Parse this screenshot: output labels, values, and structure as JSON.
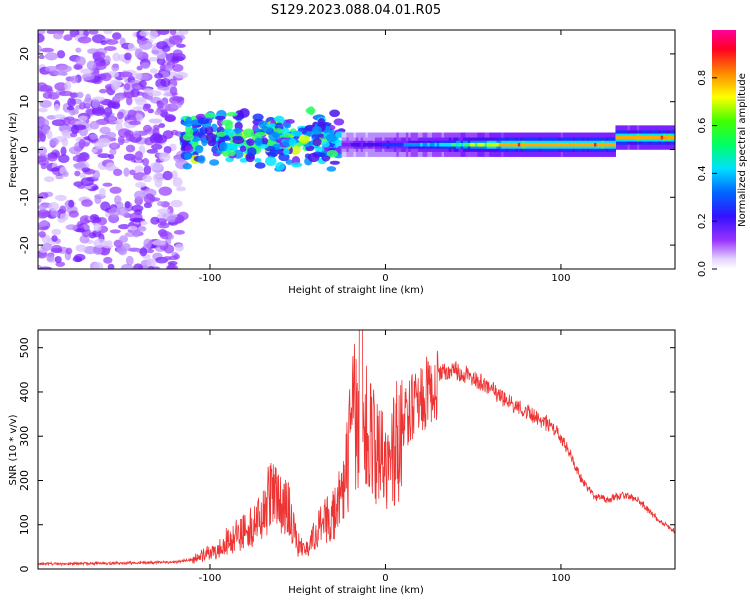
{
  "title": "S129.2023.088.04.01.R05",
  "colors": {
    "snr_line": "#ee3333",
    "axes": "#000000",
    "background": "#ffffff"
  },
  "chart_data": [
    {
      "type": "heatmap",
      "title": "",
      "xlabel": "Height of straight line (km)",
      "ylabel": "Frequency (Hz)",
      "xlim": [
        -198,
        165
      ],
      "ylim": [
        -25,
        25
      ],
      "xticks": [
        -100,
        0,
        100
      ],
      "yticks": [
        -20,
        -10,
        0,
        10,
        20
      ],
      "grid": false,
      "colorbar": {
        "label": "Normalized spectral amplitude",
        "range": [
          0.0,
          1.0
        ],
        "ticks": [
          0.0,
          0.2,
          0.4,
          0.6,
          0.8
        ],
        "colormap": "rainbow (magenta-blue-cyan-green-yellow-red)"
      },
      "ridge_regions": [
        {
          "x_range": [
            -198,
            -115
          ],
          "freq_center": 0,
          "freq_spread": 25,
          "amplitude": 0.15,
          "description": "noise"
        },
        {
          "x_range": [
            -115,
            -25
          ],
          "freq_center": 2,
          "freq_spread": 7,
          "amplitude": 0.3
        },
        {
          "x_range": [
            -25,
            165
          ],
          "freq_center": 1,
          "freq_spread": 1.5,
          "amplitude": 0.8
        }
      ]
    },
    {
      "type": "line",
      "title": "",
      "xlabel": "Height of straight line (km)",
      "ylabel": "SNR (10 * v/v)",
      "xlim": [
        -198,
        165
      ],
      "ylim": [
        0,
        540
      ],
      "xticks": [
        -100,
        0,
        100
      ],
      "yticks": [
        0,
        100,
        200,
        300,
        400,
        500
      ],
      "grid": false,
      "series": [
        {
          "name": "",
          "x": [
            -198,
            -180,
            -160,
            -140,
            -120,
            -110,
            -100,
            -90,
            -80,
            -70,
            -65,
            -60,
            -55,
            -50,
            -45,
            -40,
            -35,
            -30,
            -25,
            -20,
            -18,
            -15,
            -10,
            -5,
            0,
            5,
            10,
            15,
            20,
            25,
            30,
            35,
            40,
            45,
            50,
            55,
            60,
            65,
            70,
            75,
            80,
            85,
            90,
            95,
            100,
            105,
            110,
            115,
            120,
            125,
            130,
            135,
            140,
            145,
            150,
            155,
            160,
            165
          ],
          "y": [
            12,
            12,
            13,
            14,
            16,
            22,
            40,
            70,
            100,
            130,
            200,
            170,
            150,
            60,
            50,
            90,
            120,
            140,
            180,
            320,
            400,
            320,
            350,
            300,
            250,
            320,
            350,
            380,
            400,
            430,
            445,
            450,
            455,
            448,
            440,
            425,
            410,
            395,
            382,
            372,
            360,
            348,
            338,
            325,
            300,
            265,
            220,
            185,
            165,
            160,
            163,
            168,
            165,
            155,
            135,
            115,
            100,
            85
          ]
        }
      ]
    }
  ]
}
